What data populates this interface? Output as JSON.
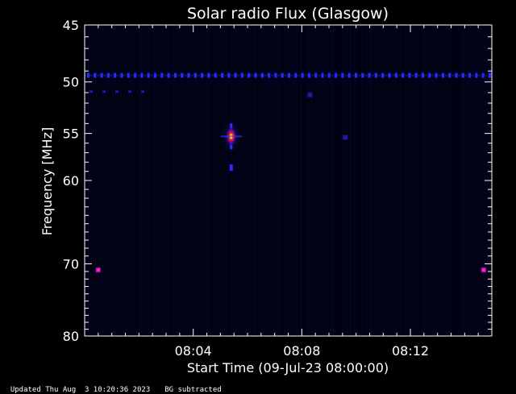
{
  "chart_data": {
    "type": "heatmap",
    "title": "Solar radio Flux (Glasgow)",
    "xlabel": "Start Time (09-Jul-23 08:00:00)",
    "ylabel": "Frequency [MHz]",
    "x_range_minutes": [
      0,
      15
    ],
    "y_range_mhz": [
      45,
      80
    ],
    "y_scale": "log",
    "x_ticks": [
      {
        "minute": 4,
        "label": "08:04"
      },
      {
        "minute": 8,
        "label": "08:08"
      },
      {
        "minute": 12,
        "label": "08:12"
      }
    ],
    "y_ticks_labeled": [
      {
        "value": 45,
        "label": "45"
      },
      {
        "value": 50,
        "label": "50"
      },
      {
        "value": 55,
        "label": "55"
      },
      {
        "value": 60,
        "label": "60"
      },
      {
        "value": 70,
        "label": "70"
      },
      {
        "value": 80,
        "label": "80"
      }
    ],
    "features": [
      {
        "kind": "burst",
        "minute": 5.4,
        "freq_mhz": 55.3
      },
      {
        "kind": "burst",
        "minute": 5.4,
        "freq_mhz": 58.6
      },
      {
        "kind": "band",
        "freq_mhz": 49.4
      },
      {
        "kind": "spot",
        "minute": 0.5,
        "freq_mhz": 70.8
      },
      {
        "kind": "spot",
        "minute": 14.7,
        "freq_mhz": 70.8
      },
      {
        "kind": "spot",
        "minute": 8.3,
        "freq_mhz": 51.2
      },
      {
        "kind": "spot",
        "minute": 9.6,
        "freq_mhz": 55.4
      }
    ],
    "colormap": [
      "#000000",
      "#1010ff",
      "#ff0000",
      "#ffff00",
      "#ffffff"
    ]
  },
  "footer": {
    "updated": "Updated Thu Aug  3 10:20:36 2023",
    "note": "BG subtracted"
  }
}
